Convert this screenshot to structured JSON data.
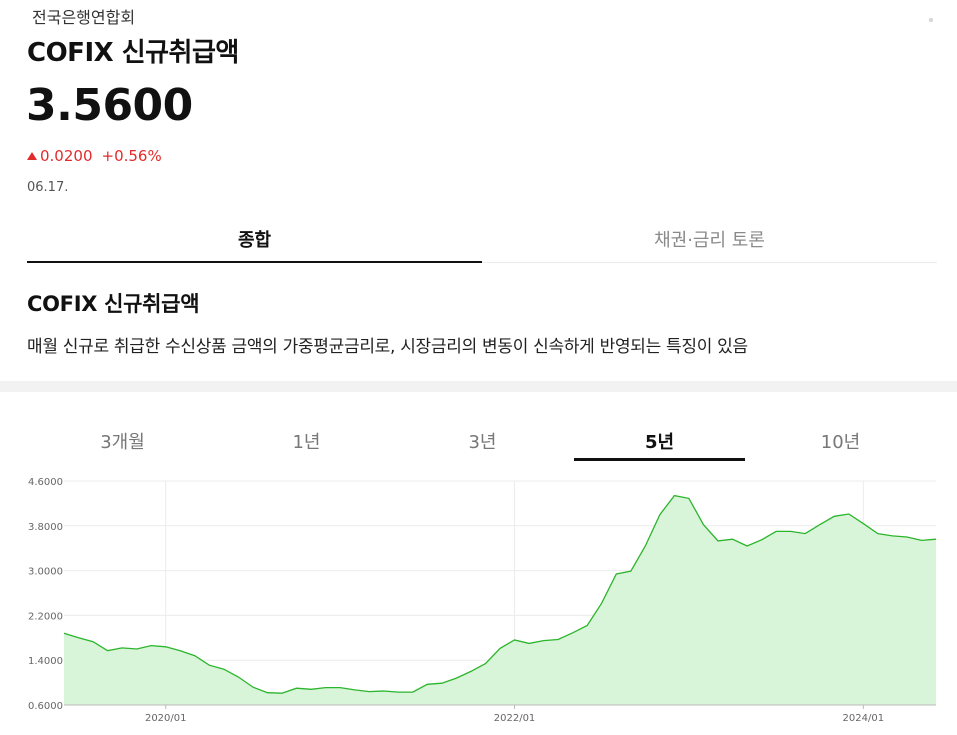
{
  "header": {
    "provider": "전국은행연합회",
    "title": "COFIX 신규취급액",
    "price": "3.5600",
    "change_abs": "0.0200",
    "change_pct": "+0.56%",
    "change_direction": "up",
    "date": "06.17.",
    "up_color": "#e22b2b"
  },
  "tabs": [
    {
      "label": "종합",
      "active": true
    },
    {
      "label": "채권·금리 토론",
      "active": false
    }
  ],
  "section": {
    "title": "COFIX 신규취급액",
    "description": "매월 신규로 취급한 수신상품 금액의 가중평균금리로, 시장금리의 변동이 신속하게 반영되는 특징이 있음"
  },
  "period_tabs": [
    {
      "label": "3개월",
      "active": false
    },
    {
      "label": "1년",
      "active": false
    },
    {
      "label": "3년",
      "active": false
    },
    {
      "label": "5년",
      "active": true
    },
    {
      "label": "10년",
      "active": false
    }
  ],
  "chart_data": {
    "type": "area",
    "title": "",
    "xlabel": "",
    "ylabel": "",
    "line_color": "#2bb52b",
    "fill_color": "#d9f5d9",
    "ylim": [
      0.6,
      4.6
    ],
    "xlim": [
      "2019-06",
      "2024-06"
    ],
    "y_ticks": [
      "0.6000",
      "1.4000",
      "2.2000",
      "3.0000",
      "3.8000",
      "4.6000"
    ],
    "x_ticks": [
      {
        "value": "2020-01",
        "label": "2020/01"
      },
      {
        "value": "2022-01",
        "label": "2022/01"
      },
      {
        "value": "2024-01",
        "label": "2024/01"
      }
    ],
    "grid": true,
    "x": [
      "2019-06",
      "2019-07",
      "2019-08",
      "2019-09",
      "2019-10",
      "2019-11",
      "2019-12",
      "2020-01",
      "2020-02",
      "2020-03",
      "2020-04",
      "2020-05",
      "2020-06",
      "2020-07",
      "2020-08",
      "2020-09",
      "2020-10",
      "2020-11",
      "2020-12",
      "2021-01",
      "2021-02",
      "2021-03",
      "2021-04",
      "2021-05",
      "2021-06",
      "2021-07",
      "2021-08",
      "2021-09",
      "2021-10",
      "2021-11",
      "2021-12",
      "2022-01",
      "2022-02",
      "2022-03",
      "2022-04",
      "2022-05",
      "2022-06",
      "2022-07",
      "2022-08",
      "2022-09",
      "2022-10",
      "2022-11",
      "2022-12",
      "2023-01",
      "2023-02",
      "2023-03",
      "2023-04",
      "2023-05",
      "2023-06",
      "2023-07",
      "2023-08",
      "2023-09",
      "2023-10",
      "2023-11",
      "2023-12",
      "2024-01",
      "2024-02",
      "2024-03",
      "2024-04",
      "2024-05",
      "2024-06"
    ],
    "values": [
      1.88,
      1.8,
      1.73,
      1.57,
      1.62,
      1.6,
      1.66,
      1.64,
      1.57,
      1.48,
      1.31,
      1.24,
      1.1,
      0.92,
      0.82,
      0.81,
      0.9,
      0.88,
      0.91,
      0.91,
      0.87,
      0.84,
      0.85,
      0.83,
      0.83,
      0.97,
      0.99,
      1.08,
      1.2,
      1.34,
      1.61,
      1.76,
      1.7,
      1.75,
      1.77,
      1.89,
      2.02,
      2.42,
      2.94,
      2.99,
      3.44,
      4.0,
      4.34,
      4.29,
      3.82,
      3.53,
      3.56,
      3.44,
      3.55,
      3.7,
      3.7,
      3.66,
      3.82,
      3.97,
      4.01,
      3.84,
      3.66,
      3.62,
      3.6,
      3.54,
      3.56
    ]
  }
}
